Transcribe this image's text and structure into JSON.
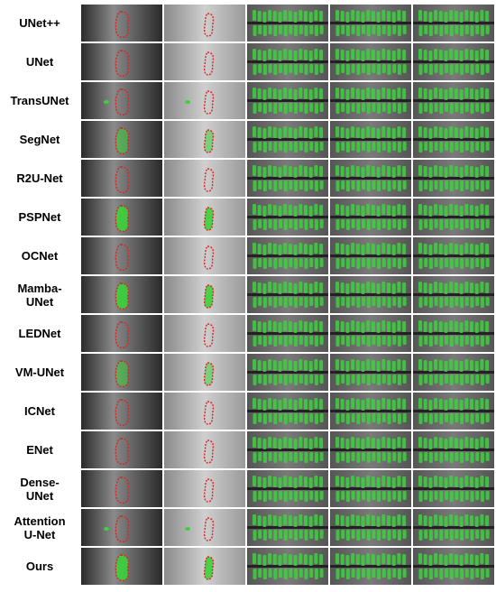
{
  "figure": {
    "rows": [
      {
        "label": "UNet++",
        "pred": "outline"
      },
      {
        "label": "UNet",
        "pred": "outline"
      },
      {
        "label": "TransUNet",
        "pred": "outline-stray"
      },
      {
        "label": "SegNet",
        "pred": "partial"
      },
      {
        "label": "R2U-Net",
        "pred": "outline"
      },
      {
        "label": "PSPNet",
        "pred": "filled"
      },
      {
        "label": "OCNet",
        "pred": "outline"
      },
      {
        "label": "Mamba-\nUNet",
        "pred": "filled"
      },
      {
        "label": "LEDNet",
        "pred": "outline"
      },
      {
        "label": "VM-UNet",
        "pred": "partial"
      },
      {
        "label": "ICNet",
        "pred": "outline"
      },
      {
        "label": "ENet",
        "pred": "outline"
      },
      {
        "label": "Dense-\nUNet",
        "pred": "outline"
      },
      {
        "label": "Attention\nU-Net",
        "pred": "outline-stray"
      },
      {
        "label": "Ours",
        "pred": "filled"
      }
    ],
    "colors": {
      "prediction": "#3cd23c",
      "ground_truth": "#e02020",
      "xray_dark": "#2a2a2a",
      "xray_mid": "#8a8a8a",
      "xray_light": "#cfcfcf"
    }
  }
}
